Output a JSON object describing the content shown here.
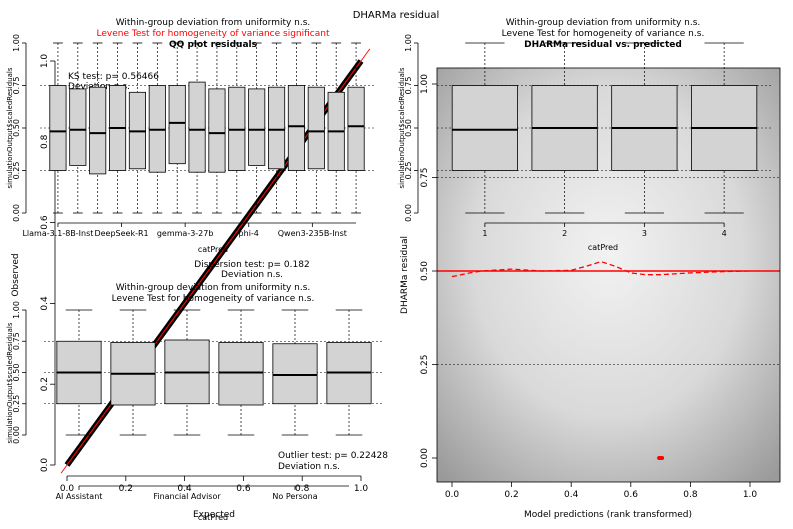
{
  "page_title": "DHARMa residual",
  "colors": {
    "box_fill": "#d3d3d3",
    "red": "#ff0000",
    "qq_line": "#000000",
    "panel_gray": "#a6a6a6"
  },
  "chart_data": [
    {
      "id": "qq",
      "type": "scatter",
      "title": "QQ plot residuals",
      "xlabel": "Expected",
      "ylabel": "Observed",
      "xlim": [
        0,
        1
      ],
      "ylim": [
        0,
        1
      ],
      "x_ticks": [
        "0.0",
        "0.2",
        "0.4",
        "0.6",
        "0.8",
        "1.0"
      ],
      "y_ticks": [
        "0.0",
        "0.2",
        "0.4",
        "0.6",
        "0.8",
        "1.0"
      ],
      "reference_line": [
        [
          0,
          0
        ],
        [
          1,
          1
        ]
      ],
      "annotations": [
        {
          "key": "ks_line1",
          "text": "KS test: p= 0.56466"
        },
        {
          "key": "ks_line2",
          "text": "Deviation n.s."
        },
        {
          "key": "disp_line1",
          "text": "Dispersion test: p= 0.182"
        },
        {
          "key": "disp_line2",
          "text": "Deviation n.s."
        },
        {
          "key": "out_line1",
          "text": "Outlier test: p= 0.22428"
        },
        {
          "key": "out_line2",
          "text": "Deviation  n.s."
        }
      ]
    },
    {
      "id": "box_models",
      "type": "box",
      "subtitle1": "Within-group deviation from uniformity n.s.",
      "subtitle2": "Levene Test for homogeneity of variance significant",
      "xlabel": "catPred",
      "ylabel": "simulationOutput$scaledResiduals",
      "ylim": [
        0,
        1
      ],
      "y_ticks": [
        "0.00",
        "0.25",
        "0.50",
        "0.75",
        "1.00"
      ],
      "x_tick_labels": [
        "Llama-3.1-8B-Inst",
        "DeepSeek-R1",
        "gemma-3-27b",
        "phi-4",
        "Qwen3-235B-Inst"
      ],
      "boxes": [
        {
          "q1": 0.25,
          "median": 0.48,
          "q3": 0.75
        },
        {
          "q1": 0.28,
          "median": 0.49,
          "q3": 0.73
        },
        {
          "q1": 0.23,
          "median": 0.47,
          "q3": 0.74
        },
        {
          "q1": 0.25,
          "median": 0.5,
          "q3": 0.75
        },
        {
          "q1": 0.26,
          "median": 0.48,
          "q3": 0.71
        },
        {
          "q1": 0.24,
          "median": 0.49,
          "q3": 0.75
        },
        {
          "q1": 0.29,
          "median": 0.53,
          "q3": 0.75
        },
        {
          "q1": 0.24,
          "median": 0.49,
          "q3": 0.77
        },
        {
          "q1": 0.24,
          "median": 0.47,
          "q3": 0.73
        },
        {
          "q1": 0.25,
          "median": 0.49,
          "q3": 0.74
        },
        {
          "q1": 0.28,
          "median": 0.49,
          "q3": 0.73
        },
        {
          "q1": 0.26,
          "median": 0.49,
          "q3": 0.74
        },
        {
          "q1": 0.25,
          "median": 0.51,
          "q3": 0.75
        },
        {
          "q1": 0.26,
          "median": 0.48,
          "q3": 0.74
        },
        {
          "q1": 0.25,
          "median": 0.48,
          "q3": 0.71
        },
        {
          "q1": 0.25,
          "median": 0.51,
          "q3": 0.74
        }
      ]
    },
    {
      "id": "box_personas",
      "type": "box",
      "subtitle1": "Within-group deviation from uniformity n.s.",
      "subtitle2": "Levene Test for homogeneity of variance n.s.",
      "xlabel": "catPred",
      "ylabel": "simulationOutput$scaledResiduals",
      "ylim": [
        0,
        1
      ],
      "y_ticks": [
        "0.00",
        "0.25",
        "0.50",
        "0.75",
        "1.00"
      ],
      "x_tick_labels": [
        "AI Assistant",
        "Financial Advisor",
        "No Persona"
      ],
      "boxes": [
        {
          "q1": 0.25,
          "median": 0.5,
          "q3": 0.75
        },
        {
          "q1": 0.24,
          "median": 0.49,
          "q3": 0.74
        },
        {
          "q1": 0.25,
          "median": 0.5,
          "q3": 0.76
        },
        {
          "q1": 0.24,
          "median": 0.5,
          "q3": 0.74
        },
        {
          "q1": 0.25,
          "median": 0.48,
          "q3": 0.73
        },
        {
          "q1": 0.25,
          "median": 0.5,
          "q3": 0.74
        }
      ]
    },
    {
      "id": "box_temp",
      "type": "box",
      "subtitle1": "Within-group deviation from uniformity n.s.",
      "subtitle2": "Levene Test for homogeneity of variance n.s.",
      "title": "DHARMa residual vs. predicted",
      "xlabel": "catPred",
      "ylabel": "simulationOutput$scaledResiduals",
      "ylim": [
        0,
        1
      ],
      "y_ticks": [
        "0.00",
        "0.25",
        "0.50",
        "0.75",
        "1.00"
      ],
      "x_tick_labels": [
        "1",
        "2",
        "3",
        "4"
      ],
      "boxes": [
        {
          "q1": 0.25,
          "median": 0.49,
          "q3": 0.75
        },
        {
          "q1": 0.25,
          "median": 0.5,
          "q3": 0.75
        },
        {
          "q1": 0.25,
          "median": 0.5,
          "q3": 0.75
        },
        {
          "q1": 0.25,
          "median": 0.5,
          "q3": 0.75
        }
      ]
    },
    {
      "id": "resid_pred",
      "type": "scatter",
      "xlabel": "Model predictions (rank transformed)",
      "ylabel": "DHARMa residual",
      "xlim": [
        0,
        1
      ],
      "ylim": [
        0,
        1
      ],
      "x_ticks": [
        "0.0",
        "0.2",
        "0.4",
        "0.6",
        "0.8",
        "1.0"
      ],
      "y_ticks": [
        "0.00",
        "0.25",
        "0.50",
        "0.75",
        "1.00"
      ],
      "ref_lines": [
        0.25,
        0.5,
        0.75
      ],
      "spline_median": {
        "x": [
          0.0,
          0.06,
          0.1,
          0.2,
          0.3,
          0.4,
          0.46,
          0.5,
          0.55,
          0.6,
          0.65,
          0.7,
          0.8,
          0.9,
          1.0
        ],
        "y": [
          0.485,
          0.495,
          0.5,
          0.505,
          0.5,
          0.502,
          0.515,
          0.525,
          0.512,
          0.495,
          0.49,
          0.49,
          0.495,
          0.498,
          0.5
        ]
      },
      "outliers_red": [
        0.695,
        0.7,
        0.705
      ]
    }
  ]
}
